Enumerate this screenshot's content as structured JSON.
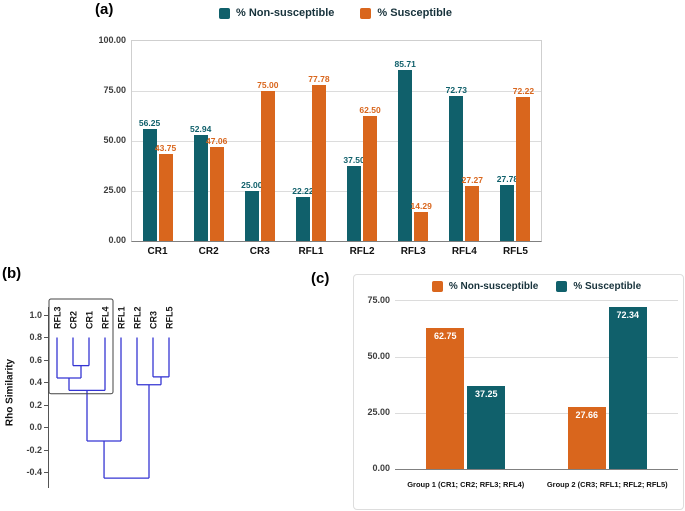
{
  "colors": {
    "teal": "#10606b",
    "orange": "#d9661d",
    "grid": "#dcdcdc",
    "axis": "#555555",
    "dendrogram_line": "#3535d3",
    "legend_text": "#17323b",
    "tick_text": "#3d3d3d",
    "bar_label_inside": "#ffffff"
  },
  "panel_a": {
    "label": "(a)",
    "legend": [
      {
        "label": "% Non-susceptible",
        "color_key": "teal"
      },
      {
        "label": "% Susceptible",
        "color_key": "orange"
      }
    ]
  },
  "panel_b": {
    "label": "(b)",
    "ylabel": "Rho Similarity"
  },
  "panel_c": {
    "label": "(c)",
    "legend": [
      {
        "label": "% Non-susceptible",
        "color_key": "orange"
      },
      {
        "label": "% Susceptible",
        "color_key": "teal"
      }
    ]
  },
  "chart_data": [
    {
      "id": "panel_a",
      "type": "bar",
      "categories": [
        "CR1",
        "CR2",
        "CR3",
        "RFL1",
        "RFL2",
        "RFL3",
        "RFL4",
        "RFL5"
      ],
      "series": [
        {
          "name": "% Non-susceptible",
          "color_key": "teal",
          "values": [
            56.25,
            52.94,
            25.0,
            22.22,
            37.5,
            85.71,
            72.73,
            27.78
          ]
        },
        {
          "name": "% Susceptible",
          "color_key": "orange",
          "values": [
            43.75,
            47.06,
            75.0,
            77.78,
            62.5,
            14.29,
            27.27,
            72.22
          ]
        }
      ],
      "ylim": [
        0,
        100
      ],
      "y_ticks": [
        "100.00",
        "75.00",
        "50.00",
        "25.00",
        "0.00"
      ],
      "value_labels": "above",
      "legend_position": "top",
      "grid": true
    },
    {
      "id": "panel_b",
      "type": "dendrogram",
      "ylabel": "Rho Similarity",
      "leaves": [
        "RFL3",
        "CR2",
        "CR1",
        "RFL4",
        "RFL1",
        "RFL2",
        "CR3",
        "RFL5"
      ],
      "y_ticks": [
        "1.0",
        "0.8",
        "0.6",
        "0.4",
        "0.2",
        "0.0",
        "-0.2",
        "-0.4"
      ],
      "ylim": [
        -0.5,
        1.1
      ],
      "highlighted_cluster": [
        "RFL3",
        "CR2",
        "CR1",
        "RFL4"
      ],
      "segments": [
        [
          1,
          0.8,
          1,
          0.55
        ],
        [
          2,
          0.8,
          2,
          0.55
        ],
        [
          1,
          0.55,
          2,
          0.55
        ],
        [
          1.5,
          0.55,
          1.5,
          0.44
        ],
        [
          0,
          0.8,
          0,
          0.44
        ],
        [
          0,
          0.44,
          1.5,
          0.44
        ],
        [
          0.75,
          0.44,
          0.75,
          0.33
        ],
        [
          3,
          0.8,
          3,
          0.33
        ],
        [
          0.75,
          0.33,
          3,
          0.33
        ],
        [
          1.875,
          0.33,
          1.875,
          -0.12
        ],
        [
          6,
          0.8,
          6,
          0.45
        ],
        [
          7,
          0.8,
          7,
          0.45
        ],
        [
          6,
          0.45,
          7,
          0.45
        ],
        [
          6.5,
          0.45,
          6.5,
          0.38
        ],
        [
          5,
          0.8,
          5,
          0.38
        ],
        [
          5,
          0.38,
          6.5,
          0.38
        ],
        [
          5.75,
          0.38,
          5.75,
          -0.45
        ],
        [
          4,
          0.8,
          4,
          -0.12
        ],
        [
          1.875,
          -0.12,
          4,
          -0.12
        ],
        [
          2.94,
          -0.12,
          2.94,
          -0.45
        ],
        [
          2.94,
          -0.45,
          5.75,
          -0.45
        ]
      ]
    },
    {
      "id": "panel_c",
      "type": "bar",
      "categories": [
        "Group 1 (CR1; CR2; RFL3; RFL4)",
        "Group 2 (CR3; RFL1; RFL2; RFL5)"
      ],
      "series": [
        {
          "name": "% Non-susceptible",
          "color_key": "orange",
          "values": [
            62.75,
            27.66
          ]
        },
        {
          "name": "% Susceptible",
          "color_key": "teal",
          "values": [
            37.25,
            72.34
          ]
        }
      ],
      "ylim": [
        0,
        75
      ],
      "y_ticks": [
        "75.00",
        "50.00",
        "25.00",
        "0.00"
      ],
      "value_labels": "inside",
      "legend_position": "top",
      "grid": true
    }
  ]
}
